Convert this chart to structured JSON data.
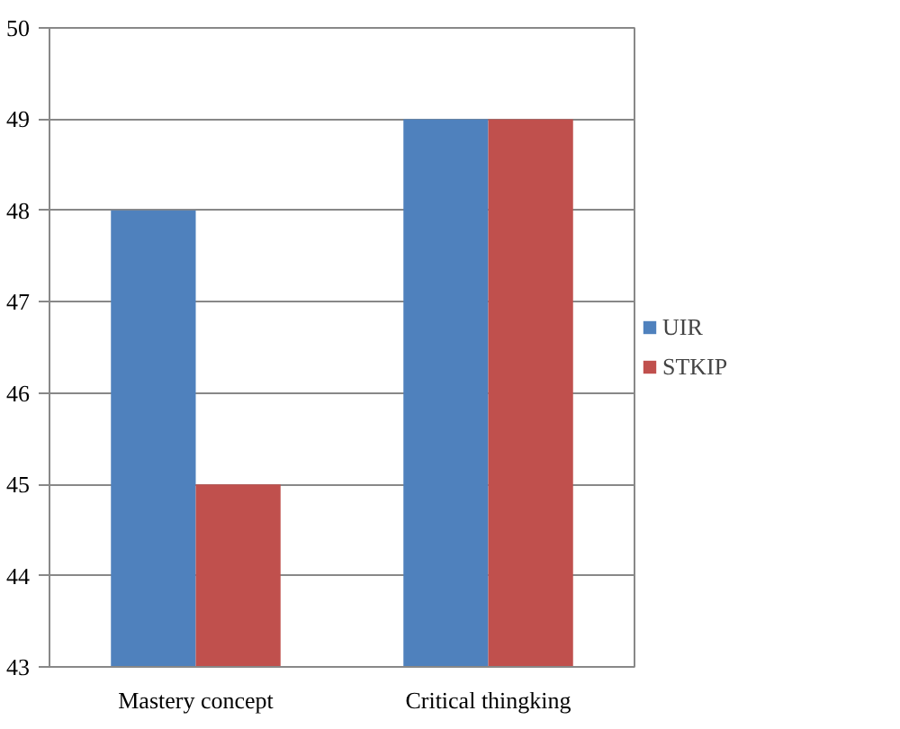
{
  "chart_data": {
    "type": "bar",
    "categories": [
      "Mastery concept",
      "Critical thingking"
    ],
    "series": [
      {
        "name": "UIR",
        "color": "#4f81bd",
        "values": [
          48,
          49
        ]
      },
      {
        "name": "STKIP",
        "color": "#c0504d",
        "values": [
          45,
          49
        ]
      }
    ],
    "ylim": [
      43,
      50
    ],
    "yticks": [
      43,
      44,
      45,
      46,
      47,
      48,
      49,
      50
    ],
    "grid": "y",
    "legend": "right"
  }
}
